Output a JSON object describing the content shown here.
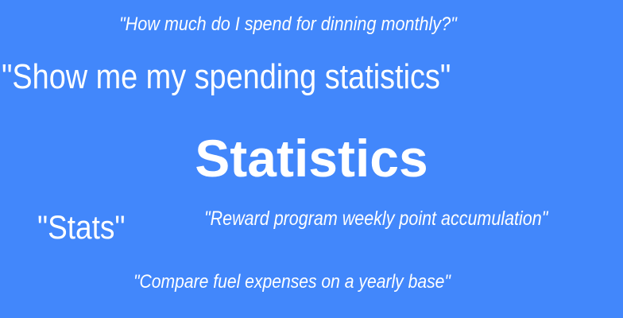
{
  "background_color": "#4287fb",
  "text_color": "#ffffff",
  "title": "Statistics",
  "phrases": [
    "\"How much do I spend for dinning monthly?\"",
    "\"Show me my spending statistics\"",
    "\"Stats\"",
    "\"Reward program weekly point accumulation\"",
    "\"Compare fuel expenses on a yearly base\""
  ]
}
